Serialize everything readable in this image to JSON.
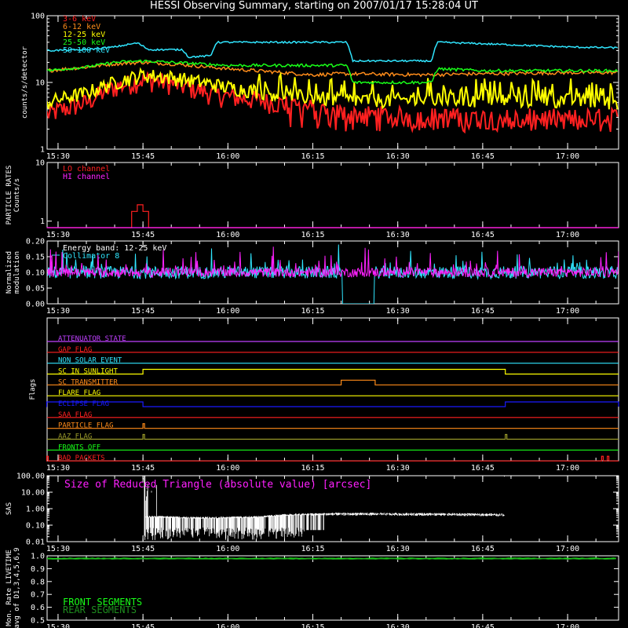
{
  "title": "HESSI Observing Summary, starting on 2007/01/17 15:28:04 UT",
  "colors": {
    "bg": "#000000",
    "axis": "#ffffff",
    "red": "#ff2020",
    "orange": "#ff8c1a",
    "yellow": "#ffff00",
    "green": "#18ff18",
    "cyan": "#30e6ff",
    "magenta": "#ff20ff",
    "purple": "#c040ff",
    "blue": "#1a1aff",
    "olive": "#9a9a2a",
    "darkgreen": "#1f8f1f",
    "white": "#ffffff"
  },
  "time_axis": {
    "unit": "UT",
    "start": "15:28:04",
    "end": "17:09:00",
    "ticks": [
      "15:30",
      "15:45",
      "16:00",
      "16:15",
      "16:30",
      "16:45",
      "17:00"
    ]
  },
  "chart_data": [
    {
      "id": "count-rates",
      "type": "line",
      "ylabel": "counts/s/detector",
      "yscale": "log",
      "ylim": [
        1,
        100
      ],
      "yticks": [
        "1",
        "10",
        "100"
      ],
      "legend_position": "top-left",
      "series": [
        {
          "name": "3-6 keV",
          "color": "red",
          "points": [
            [
              "15:28",
              3.3
            ],
            [
              "15:35",
              5
            ],
            [
              "15:40",
              8.5
            ],
            [
              "15:45",
              11
            ],
            [
              "15:48",
              10.5
            ],
            [
              "15:53",
              8.5
            ],
            [
              "15:58",
              6.5
            ],
            [
              "16:05",
              5.5
            ],
            [
              "16:12",
              4.5
            ],
            [
              "16:20",
              3.5
            ],
            [
              "16:30",
              3.2
            ],
            [
              "16:45",
              3
            ],
            [
              "16:55",
              3
            ],
            [
              "17:09",
              3
            ]
          ]
        },
        {
          "name": "6-12 keV",
          "color": "orange",
          "points": [
            [
              "15:28",
              15
            ],
            [
              "15:35",
              17
            ],
            [
              "15:40",
              19
            ],
            [
              "15:45",
              20
            ],
            [
              "15:50",
              19
            ],
            [
              "16:00",
              16
            ],
            [
              "16:15",
              13
            ],
            [
              "16:20",
              13.5
            ],
            [
              "16:35",
              13
            ],
            [
              "16:45",
              13.5
            ],
            [
              "17:00",
              14
            ],
            [
              "17:09",
              14
            ]
          ]
        },
        {
          "name": "12-25 keV",
          "color": "yellow",
          "points": [
            [
              "15:28",
              5
            ],
            [
              "15:35",
              7
            ],
            [
              "15:40",
              10
            ],
            [
              "15:45",
              13
            ],
            [
              "15:50",
              12
            ],
            [
              "16:00",
              8.5
            ],
            [
              "16:10",
              6.5
            ],
            [
              "16:20",
              5.5
            ],
            [
              "16:35",
              5.5
            ],
            [
              "16:45",
              5.5
            ],
            [
              "17:00",
              5.5
            ],
            [
              "17:09",
              5
            ]
          ]
        },
        {
          "name": "25-50 keV",
          "color": "green",
          "points": [
            [
              "15:28",
              15
            ],
            [
              "15:35",
              17
            ],
            [
              "15:40",
              20
            ],
            [
              "15:45",
              21
            ],
            [
              "15:50",
              20
            ],
            [
              "16:00",
              18
            ],
            [
              "16:10",
              18
            ],
            [
              "16:21",
              18
            ],
            [
              "16:22",
              10
            ],
            [
              "16:36",
              10
            ],
            [
              "16:37",
              16
            ],
            [
              "16:45",
              15
            ],
            [
              "17:00",
              15
            ],
            [
              "17:09",
              15
            ]
          ]
        },
        {
          "name": "50-100 keV",
          "color": "cyan",
          "points": [
            [
              "15:28",
              30
            ],
            [
              "15:35",
              31
            ],
            [
              "15:40",
              34
            ],
            [
              "15:44",
              39
            ],
            [
              "15:46",
              31
            ],
            [
              "15:52",
              31
            ],
            [
              "15:53",
              24
            ],
            [
              "15:57",
              25
            ],
            [
              "15:58",
              40
            ],
            [
              "16:05",
              40
            ],
            [
              "16:15",
              40
            ],
            [
              "16:21",
              40
            ],
            [
              "16:22",
              21
            ],
            [
              "16:36",
              21
            ],
            [
              "16:37",
              40
            ],
            [
              "16:45",
              38
            ],
            [
              "17:00",
              34
            ],
            [
              "17:09",
              33
            ]
          ]
        }
      ]
    },
    {
      "id": "particle-rates",
      "type": "line",
      "ylabel": "PARTICLE RATES Counts/s",
      "ylim": [
        0,
        10
      ],
      "yticks": [
        "1",
        "10"
      ],
      "series": [
        {
          "name": "LO channel",
          "color": "red",
          "points": [
            [
              "15:28",
              0
            ],
            [
              "15:43",
              0
            ],
            [
              "15:43",
              2.5
            ],
            [
              "15:44",
              2.5
            ],
            [
              "15:44",
              3.5
            ],
            [
              "15:45",
              3.5
            ],
            [
              "15:45",
              2.5
            ],
            [
              "15:46",
              2.5
            ],
            [
              "15:46",
              0
            ],
            [
              "17:09",
              0
            ]
          ]
        },
        {
          "name": "HI channel",
          "color": "magenta",
          "points": [
            [
              "15:28",
              0
            ],
            [
              "17:09",
              0
            ]
          ]
        }
      ]
    },
    {
      "id": "modulation",
      "type": "line",
      "ylabel": "Normalized modulation",
      "ylim": [
        0.0,
        0.2
      ],
      "yticks": [
        "0.00",
        "0.05",
        "0.10",
        "0.15",
        "0.20"
      ],
      "annotation": "Energy band: 12-25 keV",
      "series": [
        {
          "name": "Collimator 8",
          "color": "cyan",
          "baseline": 0.1,
          "noise": 0.02,
          "dropout": [
            "16:20",
            "16:26"
          ],
          "dropout_value": 0.0
        },
        {
          "name": "",
          "color": "magenta",
          "baseline": 0.1,
          "noise": 0.015
        }
      ]
    },
    {
      "id": "sas",
      "type": "line",
      "ylabel": "SAS",
      "yscale": "log",
      "ylim": [
        0.01,
        100
      ],
      "yticks": [
        "0.01",
        "0.10",
        "1.00",
        "10.00",
        "100.00"
      ],
      "annotation": "Size of Reduced Triangle (absolute value) [arcsec]",
      "series": [
        {
          "name": "Size of Reduced Triangle",
          "color": "white",
          "start": "15:45",
          "end": "16:49",
          "points": [
            [
              "15:45",
              0.3
            ],
            [
              "15:55",
              0.25
            ],
            [
              "16:05",
              0.28
            ],
            [
              "16:12",
              0.4
            ],
            [
              "16:20",
              0.45
            ],
            [
              "16:40",
              0.42
            ],
            [
              "16:48",
              0.4
            ]
          ]
        }
      ]
    },
    {
      "id": "livetime",
      "type": "line",
      "ylabel": "Mon. Rate LIVETIME avg of D1,3,4,5,6,9",
      "ylim": [
        0.5,
        1.0
      ],
      "yticks": [
        "0.5",
        "0.6",
        "0.7",
        "0.8",
        "0.9",
        "1.0"
      ],
      "legend_position": "bottom-left",
      "series": [
        {
          "name": "FRONT SEGMENTS",
          "color": "green",
          "points": [
            [
              "15:28",
              0.98
            ],
            [
              "17:09",
              0.98
            ]
          ]
        },
        {
          "name": "REAR SEGMENTS",
          "color": "darkgreen",
          "points": [
            [
              "15:28",
              0.975
            ],
            [
              "17:09",
              0.975
            ]
          ]
        }
      ]
    }
  ],
  "flags": {
    "ylabel": "Flags",
    "rows": [
      {
        "label": "ATTENUATOR STATE",
        "color": "purple",
        "intervals": []
      },
      {
        "label": "GAP FLAG",
        "color": "red",
        "intervals": []
      },
      {
        "label": "NON SOLAR EVENT",
        "color": "cyan",
        "intervals": []
      },
      {
        "label": "SC IN SUNLIGHT",
        "color": "yellow",
        "intervals": [
          [
            "15:45",
            "16:49"
          ]
        ]
      },
      {
        "label": "SC TRANSMITTER",
        "color": "orange",
        "intervals": [
          [
            "16:20",
            "16:26"
          ]
        ]
      },
      {
        "label": "FLARE FLAG",
        "color": "yellow",
        "intervals": []
      },
      {
        "label": "ECLIPSE FLAG",
        "color": "blue",
        "intervals": [
          [
            "15:28",
            "15:45"
          ],
          [
            "16:49",
            "17:09"
          ]
        ]
      },
      {
        "label": "SAA FLAG",
        "color": "red",
        "intervals": []
      },
      {
        "label": "PARTICLE FLAG",
        "color": "orange",
        "intervals": [
          [
            "15:45",
            "15:45"
          ]
        ]
      },
      {
        "label": "AAZ FLAG",
        "color": "olive",
        "intervals": [
          [
            "15:45",
            "15:45"
          ],
          [
            "16:49",
            "16:49"
          ]
        ]
      },
      {
        "label": "FRONTS OFF",
        "color": "green",
        "intervals": []
      },
      {
        "label": "BAD PACKETS",
        "color": "red",
        "intervals": [
          [
            "15:28",
            "15:28"
          ],
          [
            "17:06",
            "17:06"
          ],
          [
            "17:07",
            "17:07"
          ]
        ]
      }
    ]
  }
}
